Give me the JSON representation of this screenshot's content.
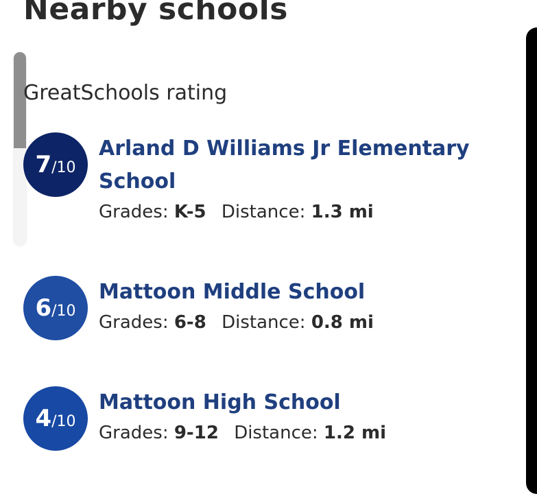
{
  "title": "Nearby schools",
  "section_label": "GreatSchools rating",
  "grades_label": "Grades:",
  "distance_label": "Distance:",
  "rating_denominator": "/10",
  "colors": {
    "rating_7": "#0d2466",
    "rating_6": "#1f4ea3",
    "rating_4": "#1849a4",
    "link": "#1f3f7f",
    "text": "#2b2b2b"
  },
  "schools": [
    {
      "rating": "7",
      "name": "Arland D Williams Jr Elementary School",
      "grades": "K-5",
      "distance": "1.3 mi"
    },
    {
      "rating": "6",
      "name": "Mattoon Middle School",
      "grades": "6-8",
      "distance": "0.8 mi"
    },
    {
      "rating": "4",
      "name": "Mattoon High School",
      "grades": "9-12",
      "distance": "1.2 mi"
    }
  ]
}
